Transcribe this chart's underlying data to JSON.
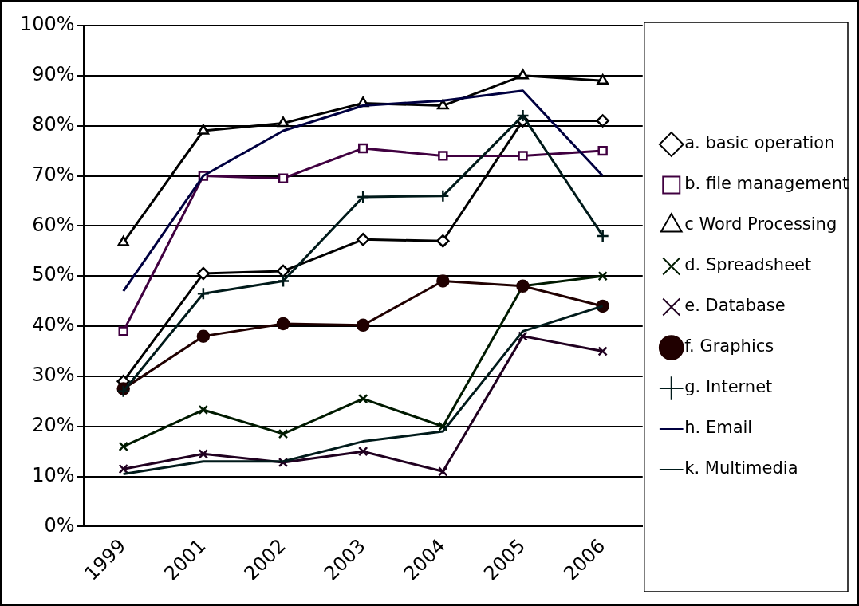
{
  "chart_data": {
    "type": "line",
    "categories": [
      "1999",
      "2001",
      "2002",
      "2003",
      "2004",
      "2005",
      "2006"
    ],
    "ylim": [
      0,
      1
    ],
    "yticks": [
      {
        "value": 0,
        "label": "0%"
      },
      {
        "value": 0.1,
        "label": "10%"
      },
      {
        "value": 0.2,
        "label": "20%"
      },
      {
        "value": 0.3,
        "label": "30%"
      },
      {
        "value": 0.4,
        "label": "40%"
      },
      {
        "value": 0.5,
        "label": "50%"
      },
      {
        "value": 0.6,
        "label": "60%"
      },
      {
        "value": 0.7,
        "label": "70%"
      },
      {
        "value": 0.8,
        "label": "80%"
      },
      {
        "value": 0.9,
        "label": "90%"
      },
      {
        "value": 1,
        "label": "100%"
      }
    ],
    "grid": "y",
    "legend": "right",
    "line_style": "solid",
    "series": [
      {
        "name": "a. basic operation",
        "color": "#000000",
        "marker": "diamond",
        "values": [
          0.29,
          0.505,
          0.51,
          0.573,
          0.57,
          0.81,
          0.81
        ]
      },
      {
        "name": "b. file management",
        "color": "#400040",
        "marker": "square",
        "values": [
          0.39,
          0.7,
          0.695,
          0.755,
          0.74,
          0.74,
          0.75
        ]
      },
      {
        "name": "c Word Processing",
        "color": "#000000",
        "marker": "triangle",
        "values": [
          0.567,
          0.79,
          0.805,
          0.845,
          0.84,
          0.9,
          0.89
        ]
      },
      {
        "name": "d. Spreadsheet",
        "color": "#001a00",
        "marker": "cross",
        "values": [
          0.16,
          0.233,
          0.185,
          0.255,
          0.2,
          0.48,
          0.5
        ]
      },
      {
        "name": "e. Database",
        "color": "#200020",
        "marker": "cross",
        "values": [
          0.115,
          0.145,
          0.128,
          0.15,
          0.11,
          0.38,
          0.35
        ]
      },
      {
        "name": "f. Graphics",
        "color": "#200000",
        "marker": "circle",
        "values": [
          0.275,
          0.38,
          0.405,
          0.402,
          0.49,
          0.48,
          0.44
        ]
      },
      {
        "name": "g. Internet",
        "color": "#001a1a",
        "marker": "plus",
        "values": [
          0.27,
          0.465,
          0.49,
          0.658,
          0.66,
          0.82,
          0.58
        ]
      },
      {
        "name": "h. Email",
        "color": "#000040",
        "marker": "none",
        "values": [
          0.47,
          0.7,
          0.79,
          0.84,
          0.85,
          0.87,
          0.7
        ]
      },
      {
        "name": "k. Multimedia",
        "color": "#001a1a",
        "marker": "none",
        "values": [
          0.105,
          0.13,
          0.13,
          0.17,
          0.19,
          0.39,
          0.44
        ]
      }
    ]
  }
}
